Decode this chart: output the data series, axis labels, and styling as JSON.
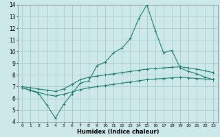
{
  "xlabel": "Humidex (Indice chaleur)",
  "xlim": [
    -0.5,
    23.5
  ],
  "ylim": [
    4,
    14
  ],
  "xticks": [
    0,
    1,
    2,
    3,
    4,
    5,
    6,
    7,
    8,
    9,
    10,
    11,
    12,
    13,
    14,
    15,
    16,
    17,
    18,
    19,
    20,
    21,
    22,
    23
  ],
  "yticks": [
    4,
    5,
    6,
    7,
    8,
    9,
    10,
    11,
    12,
    13,
    14
  ],
  "bg_color": "#cce8e8",
  "line_color": "#1a7a6e",
  "grid_color": "#aacccc",
  "line1_x": [
    0,
    1,
    2,
    3,
    4,
    5,
    6,
    7,
    8,
    9,
    10,
    11,
    12,
    13,
    14,
    15,
    16,
    17,
    18,
    19,
    20,
    21,
    22,
    23
  ],
  "line1_y": [
    6.9,
    6.7,
    6.4,
    5.4,
    4.3,
    5.5,
    6.4,
    7.3,
    7.5,
    8.8,
    9.1,
    9.9,
    10.3,
    11.1,
    12.8,
    14.0,
    11.8,
    9.9,
    10.1,
    8.6,
    8.3,
    8.1,
    7.8,
    7.6
  ],
  "line2_x": [
    0,
    1,
    2,
    3,
    4,
    5,
    6,
    7,
    8,
    9,
    10,
    11,
    12,
    13,
    14,
    15,
    16,
    17,
    18,
    19,
    20,
    21,
    22,
    23
  ],
  "line2_y": [
    7.0,
    6.9,
    6.8,
    6.7,
    6.6,
    6.8,
    7.2,
    7.6,
    7.8,
    7.9,
    8.0,
    8.1,
    8.2,
    8.3,
    8.4,
    8.5,
    8.55,
    8.6,
    8.65,
    8.7,
    8.6,
    8.5,
    8.35,
    8.2
  ],
  "line3_x": [
    0,
    1,
    2,
    3,
    4,
    5,
    6,
    7,
    8,
    9,
    10,
    11,
    12,
    13,
    14,
    15,
    16,
    17,
    18,
    19,
    20,
    21,
    22,
    23
  ],
  "line3_y": [
    6.9,
    6.7,
    6.5,
    6.3,
    6.2,
    6.35,
    6.55,
    6.75,
    6.9,
    7.0,
    7.1,
    7.2,
    7.3,
    7.4,
    7.5,
    7.6,
    7.65,
    7.7,
    7.75,
    7.8,
    7.75,
    7.7,
    7.65,
    7.6
  ]
}
